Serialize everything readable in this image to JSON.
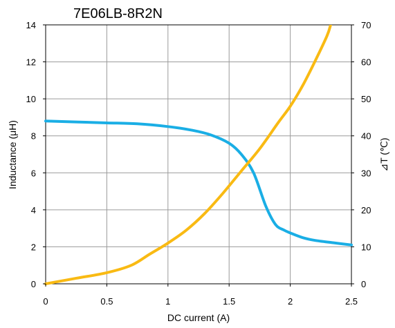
{
  "chart_data": {
    "type": "line",
    "title": "7E06LB-8R2N",
    "xlabel": "DC current (A)",
    "ylabel_left": "Inductance (μH)",
    "ylabel_right": "⊿T (℃)",
    "xlim": [
      0,
      2.5
    ],
    "ylim_left": [
      0,
      14
    ],
    "ylim_right": [
      0,
      70
    ],
    "x_ticks": [
      "0",
      "0.5",
      "1",
      "1.5",
      "2",
      "2.5"
    ],
    "y_left_ticks": [
      "0",
      "2",
      "4",
      "6",
      "8",
      "10",
      "12",
      "14"
    ],
    "y_right_ticks": [
      "0",
      "10",
      "20",
      "30",
      "40",
      "50",
      "60",
      "70"
    ],
    "grid": true,
    "legend": "none",
    "series": [
      {
        "axis": "left",
        "color": "#1AAEE5",
        "points": [
          [
            0,
            8.8
          ],
          [
            0.25,
            8.75
          ],
          [
            0.5,
            8.7
          ],
          [
            0.75,
            8.65
          ],
          [
            1.0,
            8.5
          ],
          [
            1.2,
            8.3
          ],
          [
            1.35,
            8.05
          ],
          [
            1.5,
            7.6
          ],
          [
            1.6,
            7.0
          ],
          [
            1.7,
            6.0
          ],
          [
            1.8,
            4.2
          ],
          [
            1.88,
            3.2
          ],
          [
            1.95,
            2.9
          ],
          [
            2.0,
            2.75
          ],
          [
            2.1,
            2.5
          ],
          [
            2.2,
            2.35
          ],
          [
            2.35,
            2.22
          ],
          [
            2.5,
            2.1
          ]
        ]
      },
      {
        "axis": "right",
        "color": "#F9BA13",
        "points": [
          [
            0,
            0
          ],
          [
            0.25,
            1.5
          ],
          [
            0.5,
            3
          ],
          [
            0.7,
            5
          ],
          [
            0.85,
            8
          ],
          [
            1.0,
            11
          ],
          [
            1.15,
            14.5
          ],
          [
            1.3,
            19
          ],
          [
            1.45,
            24.5
          ],
          [
            1.6,
            30.5
          ],
          [
            1.75,
            36.5
          ],
          [
            1.9,
            43.5
          ],
          [
            2.0,
            48
          ],
          [
            2.1,
            53.5
          ],
          [
            2.2,
            60
          ],
          [
            2.3,
            67
          ],
          [
            2.33,
            70
          ]
        ]
      }
    ]
  }
}
